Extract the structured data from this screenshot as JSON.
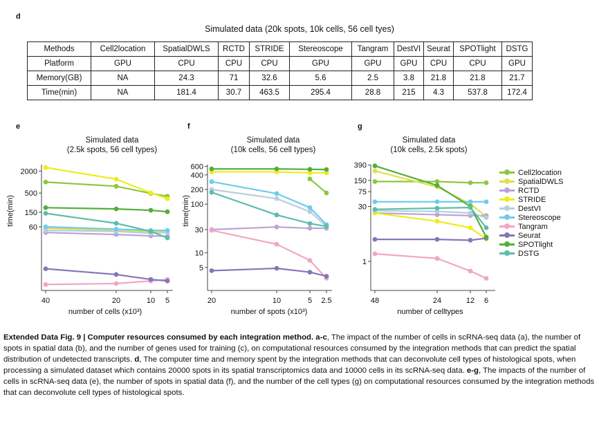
{
  "panel_letters": {
    "d": "d",
    "e": "e",
    "f": "f",
    "g": "g"
  },
  "table": {
    "title": "Simulated data (20k spots, 10k cells, 56 cell tyes)",
    "rows": [
      [
        "Methods",
        "Cell2location",
        "SpatialDWLS",
        "RCTD",
        "STRIDE",
        "Stereoscope",
        "Tangram",
        "DestVI",
        "Seurat",
        "SPOTlight",
        "DSTG"
      ],
      [
        "Platform",
        "GPU",
        "CPU",
        "CPU",
        "CPU",
        "GPU",
        "GPU",
        "GPU",
        "CPU",
        "CPU",
        "GPU"
      ],
      [
        "Memory(GB)",
        "NA",
        "24.3",
        "71",
        "32.6",
        "5.6",
        "2.5",
        "3.8",
        "21.8",
        "21.8",
        "21.7"
      ],
      [
        "Time(min)",
        "NA",
        "181.4",
        "30.7",
        "463.5",
        "295.4",
        "28.8",
        "215",
        "4.3",
        "537.8",
        "172.4"
      ]
    ]
  },
  "legend": [
    {
      "name": "Cell2location",
      "color": "#8dc63f"
    },
    {
      "name": "SpatialDWLS",
      "color": "#e0e04a"
    },
    {
      "name": "RCTD",
      "color": "#b9a3d6"
    },
    {
      "name": "STRIDE",
      "color": "#eded1c"
    },
    {
      "name": "DestVI",
      "color": "#b7cfdc"
    },
    {
      "name": "Stereoscope",
      "color": "#6fcbee"
    },
    {
      "name": "Tangram",
      "color": "#f2a6c3"
    },
    {
      "name": "Seurat",
      "color": "#8576b8"
    },
    {
      "name": "SPOTlight",
      "color": "#56ad3c"
    },
    {
      "name": "DSTG",
      "color": "#5cbdac"
    }
  ],
  "chart_data": [
    {
      "panel": "e",
      "type": "line",
      "title": "Simulated data",
      "subtitle": "(2.5k spots, 56 cell types)",
      "xlabel": "number of cells (x10³)",
      "ylabel": "time(min)",
      "yscale": "log",
      "ylim": [
        1.2,
        3000
      ],
      "yticks": [
        2000,
        500,
        150,
        60
      ],
      "x": [
        40,
        20,
        10,
        5
      ],
      "xticks": [
        "40",
        "20",
        "10",
        "5"
      ],
      "series": [
        {
          "name": "Cell2location",
          "values": [
            1000,
            770,
            490,
            410
          ]
        },
        {
          "name": "SpatialDWLS",
          "values": [
            55,
            48,
            44,
            44
          ]
        },
        {
          "name": "RCTD",
          "values": [
            42,
            37,
            34,
            33
          ]
        },
        {
          "name": "STRIDE",
          "values": [
            2500,
            1200,
            510,
            350
          ]
        },
        {
          "name": "DestVI",
          "values": [
            48,
            45,
            40,
            42
          ]
        },
        {
          "name": "Stereoscope",
          "values": [
            60,
            52,
            48,
            48
          ]
        },
        {
          "name": "Tangram",
          "values": [
            1.6,
            1.7,
            2.0,
            2.2
          ]
        },
        {
          "name": "Seurat",
          "values": [
            4.3,
            3.0,
            2.2,
            2.0
          ]
        },
        {
          "name": "SPOTlight",
          "values": [
            200,
            185,
            170,
            155
          ]
        },
        {
          "name": "DSTG",
          "values": [
            140,
            75,
            45,
            30
          ]
        }
      ]
    },
    {
      "panel": "f",
      "type": "line",
      "title": "Simulated data",
      "subtitle": "(10k cells, 56 cell types)",
      "xlabel": "number of spots (x10³)",
      "ylabel": "time(min)",
      "yscale": "log",
      "ylim": [
        1.8,
        650
      ],
      "yticks": [
        600,
        400,
        200,
        100,
        30,
        10,
        5
      ],
      "x": [
        20,
        10,
        5,
        2.5
      ],
      "xticks": [
        "20",
        "10",
        "5",
        "2.5"
      ],
      "series": [
        {
          "name": "Cell2location",
          "values": [
            null,
            null,
            330,
            170
          ]
        },
        {
          "name": "SpatialDWLS",
          "values": [
            null,
            null,
            null,
            null
          ]
        },
        {
          "name": "RCTD",
          "values": [
            30,
            34,
            32,
            32
          ]
        },
        {
          "name": "STRIDE",
          "values": [
            460,
            460,
            440,
            440
          ]
        },
        {
          "name": "DestVI",
          "values": [
            200,
            130,
            70,
            35
          ]
        },
        {
          "name": "Stereoscope",
          "values": [
            290,
            165,
            85,
            38
          ]
        },
        {
          "name": "Tangram",
          "values": [
            29,
            15,
            7,
            3
          ]
        },
        {
          "name": "Seurat",
          "values": [
            4.3,
            4.8,
            4.0,
            3.3
          ]
        },
        {
          "name": "SPOTlight",
          "values": [
            530,
            530,
            520,
            515
          ]
        },
        {
          "name": "DSTG",
          "values": [
            175,
            60,
            40,
            35
          ]
        }
      ]
    },
    {
      "panel": "g",
      "type": "line",
      "title": "Simulated data",
      "subtitle": "(10k cells, 2.5k spots)",
      "xlabel": "number of celltypes",
      "ylabel": "",
      "yscale": "log",
      "ylim": [
        0.18,
        400
      ],
      "yticks": [
        390,
        150,
        75,
        30,
        1
      ],
      "x": [
        48,
        24,
        12,
        6
      ],
      "xticks": [
        "48",
        "24",
        "12",
        "6"
      ],
      "series": [
        {
          "name": "Cell2location",
          "values": [
            140,
            140,
            130,
            130
          ]
        },
        {
          "name": "SpatialDWLS",
          "values": [
            270,
            100,
            35,
            16
          ]
        },
        {
          "name": "RCTD",
          "values": [
            20,
            18,
            17,
            17
          ]
        },
        {
          "name": "STRIDE",
          "values": [
            20,
            12,
            8,
            4
          ]
        },
        {
          "name": "DestVI",
          "values": [
            23,
            22,
            20,
            15
          ]
        },
        {
          "name": "Stereoscope",
          "values": [
            40,
            40,
            40,
            40
          ]
        },
        {
          "name": "Tangram",
          "values": [
            1.6,
            1.2,
            0.55,
            0.35
          ]
        },
        {
          "name": "Seurat",
          "values": [
            3.9,
            3.9,
            3.7,
            4.2
          ]
        },
        {
          "name": "SPOTlight",
          "values": [
            370,
            110,
            30,
            4.5
          ]
        },
        {
          "name": "DSTG",
          "values": [
            25,
            27,
            28,
            8
          ]
        }
      ]
    }
  ],
  "caption": {
    "bold": "Extended Data Fig. 9 | Computer resources consumed by each integration method. a-c",
    "p1": ", The impact of the number of cells in scRNA-seq data (a), the number of spots in spatial data (b), and the number of genes used for training (c), on computational resources consumed by the integration methods that can predict the spatial distribution of undetected transcripts. ",
    "bold2": "d",
    "p2": ", The computer time and memory spent by the integration methods that can deconvolute cell types of histological spots, when processing a simulated dataset which contains 20000 spots in its spatial transcriptomics data and 10000 cells in its scRNA-seq data. ",
    "bold3": "e-g",
    "p3": ", The impacts of the number of cells in scRNA-seq data (e), the number of spots in spatial data (f), and the number of the cell types (g) on computational resources consumed by the integration methods that can deconvolute cell types of histological spots."
  }
}
